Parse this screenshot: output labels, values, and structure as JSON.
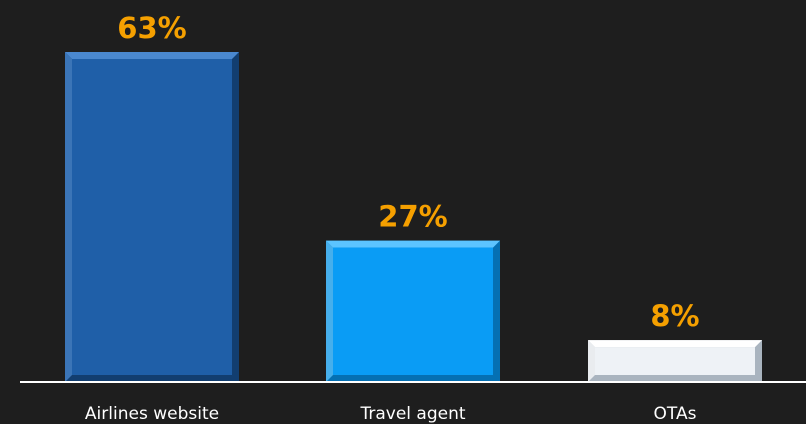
{
  "chart_data": {
    "type": "bar",
    "categories": [
      "Airlines website",
      "Travel agent",
      "OTAs"
    ],
    "values": [
      63,
      27,
      8
    ],
    "value_labels": [
      "63%",
      "27%",
      "8%"
    ],
    "title": "",
    "xlabel": "",
    "ylabel": "",
    "ylim": [
      0,
      63
    ],
    "grid": false,
    "legend": "none",
    "colors": {
      "background": "#1e1e1e",
      "axis": "#ffffff",
      "data_label": "#f5a000",
      "tick_label": "#ffffff",
      "bars": [
        {
          "face": "#1f5fa8",
          "light": "#4a88cf",
          "dark": "#123e70"
        },
        {
          "face": "#0a9cf5",
          "light": "#5cc4ff",
          "dark": "#0570b3"
        },
        {
          "face": "#eef2f6",
          "light": "#ffffff",
          "dark": "#a9b4bf"
        }
      ]
    }
  }
}
